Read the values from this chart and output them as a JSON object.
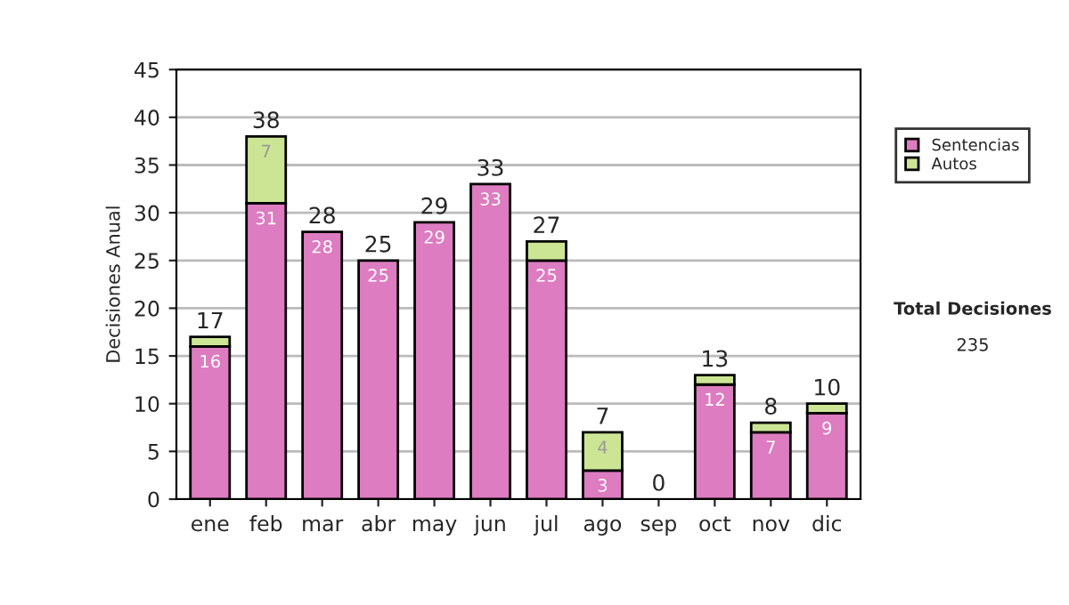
{
  "chart_data": {
    "type": "bar",
    "stacked": true,
    "ylabel": "Decisiones Anual",
    "categories": [
      "ene",
      "feb",
      "mar",
      "abr",
      "may",
      "jun",
      "jul",
      "ago",
      "sep",
      "oct",
      "nov",
      "dic"
    ],
    "series": [
      {
        "name": "Sentencias",
        "color": "#dd7cc0",
        "values": [
          16,
          31,
          28,
          25,
          29,
          33,
          25,
          3,
          0,
          12,
          7,
          9
        ],
        "value_labels": [
          "16",
          "31",
          "28",
          "25",
          "29",
          "33",
          "25",
          "3",
          null,
          "12",
          "7",
          "9"
        ]
      },
      {
        "name": "Autos",
        "color": "#cce594",
        "values": [
          1,
          7,
          0,
          0,
          0,
          0,
          2,
          4,
          0,
          1,
          1,
          1
        ],
        "value_labels": [
          null,
          "7",
          null,
          null,
          null,
          null,
          null,
          "4",
          null,
          null,
          null,
          null
        ]
      }
    ],
    "totals": [
      "17",
      "38",
      "28",
      "25",
      "29",
      "33",
      "27",
      "7",
      "0",
      "13",
      "8",
      "10"
    ],
    "ylim": [
      0,
      45
    ],
    "yticks": [
      0,
      5,
      10,
      15,
      20,
      25,
      30,
      35,
      40,
      45
    ],
    "grid": "y",
    "legend": "right",
    "annotations": [
      "Total Decisiones",
      "235"
    ]
  }
}
